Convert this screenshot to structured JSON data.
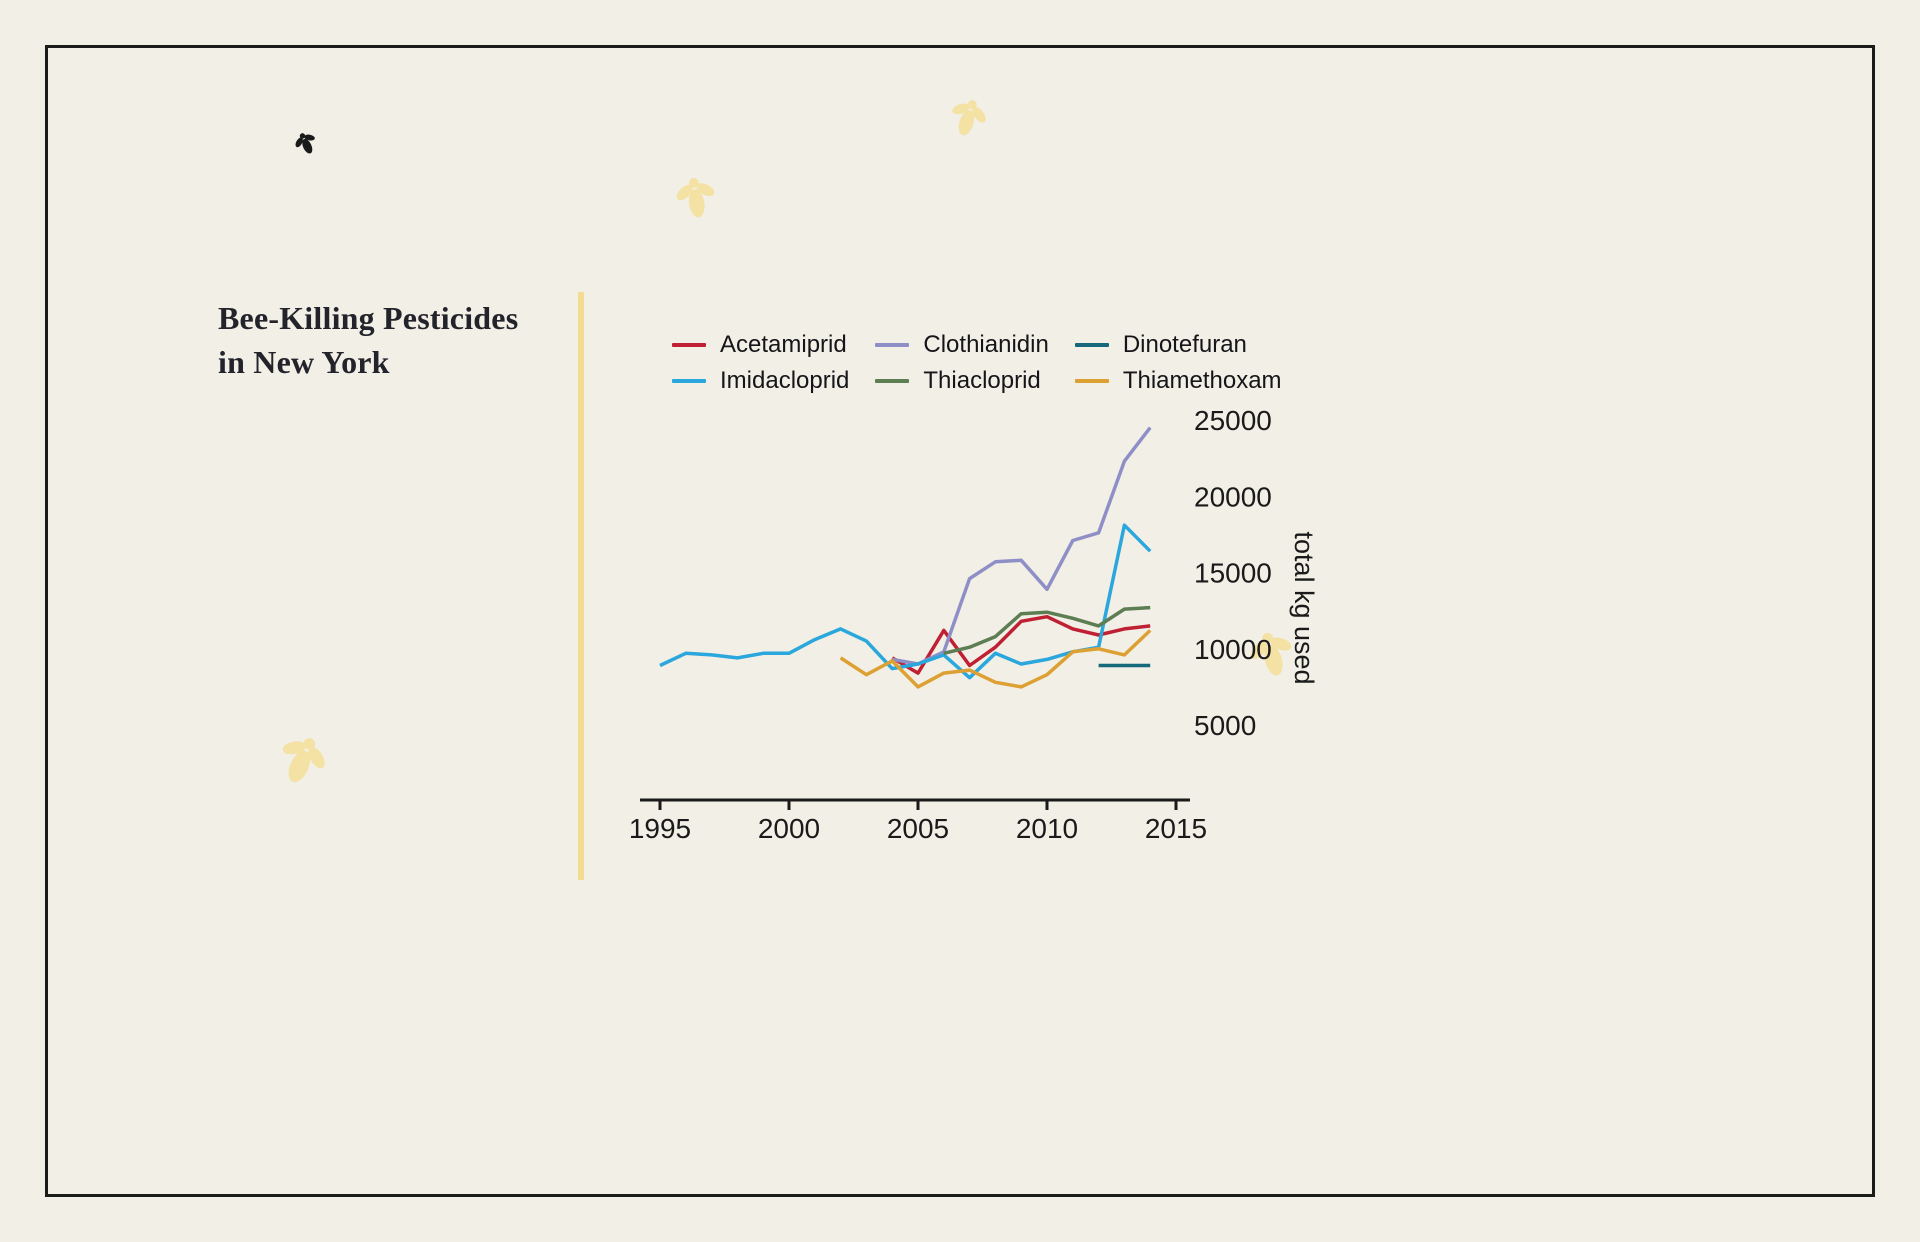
{
  "title": {
    "line1": "Bee-Killing Pesticides",
    "line2": "in New York"
  },
  "colors": {
    "background": "#f2efe6",
    "frame": "#1b1b1b",
    "divider": "#f1dc90",
    "bee_dark": "#1a1a1a",
    "bee_pale": "#f3e2a4",
    "axis": "#1a1a1a"
  },
  "chart_data": {
    "type": "line",
    "title": "Bee-Killing Pesticides in New York",
    "xlabel": "",
    "ylabel": "total kg used",
    "grid": false,
    "legend_position": "top",
    "xlim": [
      1995,
      2015
    ],
    "ylim": [
      5000,
      25000
    ],
    "xticks": [
      1995,
      2000,
      2005,
      2010,
      2015
    ],
    "yticks": [
      5000,
      10000,
      15000,
      20000,
      25000
    ],
    "x": [
      1995,
      1996,
      1997,
      1998,
      1999,
      2000,
      2001,
      2002,
      2003,
      2004,
      2005,
      2006,
      2007,
      2008,
      2009,
      2010,
      2011,
      2012,
      2013,
      2014
    ],
    "series": [
      {
        "name": "Acetamiprid",
        "color": "#bf2033",
        "values": [
          null,
          null,
          null,
          null,
          null,
          null,
          null,
          null,
          null,
          9400,
          8400,
          11200,
          8900,
          10100,
          11800,
          12100,
          11300,
          10900,
          11300,
          11500
        ]
      },
      {
        "name": "Clothianidin",
        "color": "#8f8fc7",
        "values": [
          null,
          null,
          null,
          null,
          null,
          null,
          null,
          null,
          null,
          9300,
          9000,
          9800,
          14600,
          15700,
          15800,
          13900,
          17100,
          17600,
          22300,
          24500
        ]
      },
      {
        "name": "Dinotefuran",
        "color": "#16697a",
        "values": [
          null,
          null,
          null,
          null,
          null,
          null,
          null,
          null,
          null,
          null,
          null,
          null,
          null,
          null,
          null,
          null,
          null,
          8900,
          8900,
          8900
        ]
      },
      {
        "name": "Imidacloprid",
        "color": "#2aa7dc",
        "values": [
          8900,
          9700,
          9600,
          9400,
          9700,
          9700,
          10600,
          11300,
          10500,
          8700,
          9000,
          9600,
          8100,
          9700,
          9000,
          9300,
          9800,
          10100,
          18100,
          16400
        ]
      },
      {
        "name": "Thiacloprid",
        "color": "#5d7d52",
        "values": [
          null,
          null,
          null,
          null,
          null,
          null,
          null,
          null,
          null,
          null,
          null,
          9700,
          10100,
          10800,
          12300,
          12400,
          12000,
          11500,
          12600,
          12700
        ]
      },
      {
        "name": "Thiamethoxam",
        "color": "#dda032",
        "values": [
          null,
          null,
          null,
          null,
          null,
          null,
          null,
          9400,
          8300,
          9200,
          7500,
          8400,
          8600,
          7800,
          7500,
          8300,
          9800,
          10000,
          9600,
          11200
        ]
      }
    ]
  }
}
